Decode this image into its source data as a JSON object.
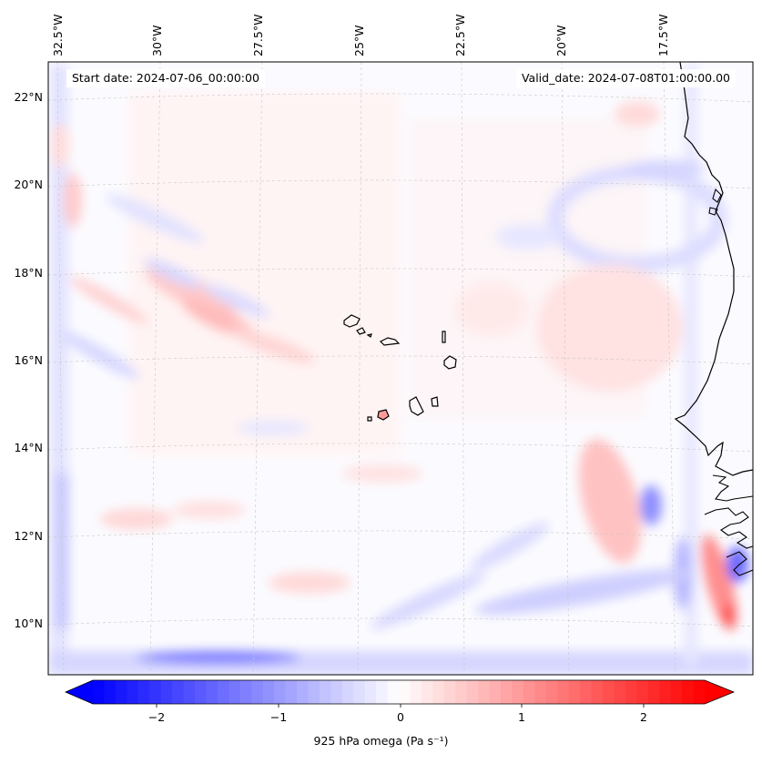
{
  "header": {
    "start_date": "Start date: 2024-07-06_00:00:00",
    "valid_date": "Valid_date: 2024-07-08T01:00:00.00"
  },
  "axes": {
    "lon_labels": [
      "32.5°W",
      "30°W",
      "27.5°W",
      "25°W",
      "22.5°W",
      "20°W",
      "17.5°W"
    ],
    "lat_labels": [
      "22°N",
      "20°N",
      "18°N",
      "16°N",
      "14°N",
      "12°N",
      "10°N"
    ],
    "gridlines": true
  },
  "colorbar": {
    "label": "925 hPa omega (Pa s⁻¹)",
    "ticks": [
      "−2",
      "−1",
      "0",
      "1",
      "2"
    ],
    "range": [
      -2.7,
      2.7
    ],
    "colormap": "bwr",
    "extend": "both"
  },
  "colors": {
    "negative": "#0000ff",
    "neutral": "#ffffff",
    "positive": "#ff0000",
    "coastline": "#000000"
  }
}
